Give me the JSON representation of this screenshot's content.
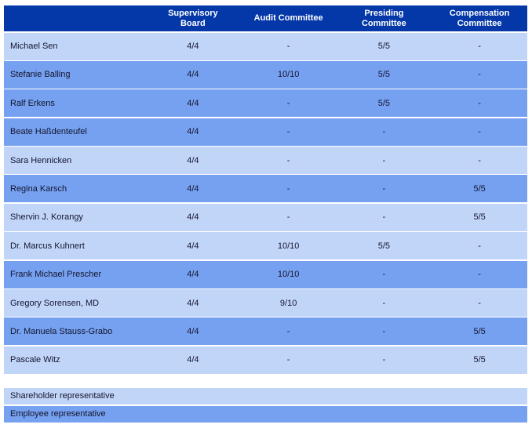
{
  "colors": {
    "header": "#0438a8",
    "shareholder": "#c1d5f8",
    "employee": "#75a1f0",
    "header_text": "#ffffff",
    "body_text": "#15152e"
  },
  "table": {
    "columns": [
      "Supervisory Board",
      "Audit Committee",
      "Presiding Committee",
      "Compensation Committee"
    ],
    "rows": [
      {
        "name": "Michael Sen",
        "type": "shareholder",
        "values": [
          "4/4",
          "-",
          "5/5",
          "-"
        ]
      },
      {
        "name": "Stefanie Balling",
        "type": "employee",
        "values": [
          "4/4",
          "10/10",
          "5/5",
          "-"
        ]
      },
      {
        "name": "Ralf Erkens",
        "type": "employee",
        "values": [
          "4/4",
          "-",
          "5/5",
          "-"
        ]
      },
      {
        "name": "Beate Haßdenteufel",
        "type": "employee",
        "values": [
          "4/4",
          "-",
          "-",
          "-"
        ]
      },
      {
        "name": "Sara Hennicken",
        "type": "shareholder",
        "values": [
          "4/4",
          "-",
          "-",
          "-"
        ]
      },
      {
        "name": "Regina Karsch",
        "type": "employee",
        "values": [
          "4/4",
          "-",
          "-",
          "5/5"
        ]
      },
      {
        "name": "Shervin J. Korangy",
        "type": "shareholder",
        "values": [
          "4/4",
          "-",
          "-",
          "5/5"
        ]
      },
      {
        "name": "Dr. Marcus Kuhnert",
        "type": "shareholder",
        "values": [
          "4/4",
          "10/10",
          "5/5",
          "-"
        ]
      },
      {
        "name": "Frank Michael Prescher",
        "type": "employee",
        "values": [
          "4/4",
          "10/10",
          "-",
          "-"
        ]
      },
      {
        "name": "Gregory Sorensen, MD",
        "type": "shareholder",
        "values": [
          "4/4",
          "9/10",
          "-",
          "-"
        ]
      },
      {
        "name": "Dr. Manuela Stauss-Grabo",
        "type": "employee",
        "values": [
          "4/4",
          "-",
          "-",
          "5/5"
        ]
      },
      {
        "name": "Pascale Witz",
        "type": "shareholder",
        "values": [
          "4/4",
          "-",
          "-",
          "5/5"
        ]
      }
    ]
  },
  "legend": [
    {
      "label": "Shareholder representative",
      "type": "shareholder"
    },
    {
      "label": "Employee representative",
      "type": "employee"
    }
  ]
}
